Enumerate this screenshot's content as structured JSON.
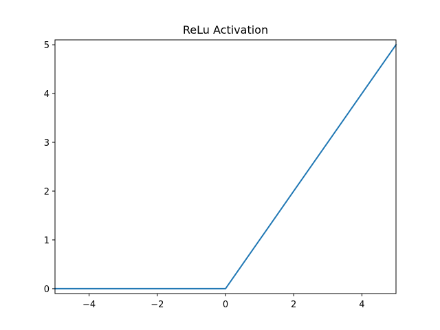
{
  "chart_data": {
    "type": "line",
    "title": "ReLu Activation",
    "xlabel": "",
    "ylabel": "",
    "xlim": [
      -5,
      5
    ],
    "ylim": [
      -0.1,
      5.1
    ],
    "x_ticks": [
      -4,
      -2,
      0,
      2,
      4
    ],
    "x_tick_labels": [
      "−4",
      "−2",
      "0",
      "2",
      "4"
    ],
    "y_ticks": [
      0,
      1,
      2,
      3,
      4,
      5
    ],
    "y_tick_labels": [
      "0",
      "1",
      "2",
      "3",
      "4",
      "5"
    ],
    "grid": false,
    "legend": "none",
    "series": [
      {
        "color": "#1f77b4",
        "x": [
          -5,
          -4,
          -3,
          -2,
          -1,
          0,
          1,
          2,
          3,
          4,
          5
        ],
        "y": [
          0,
          0,
          0,
          0,
          0,
          0,
          1,
          2,
          3,
          4,
          5
        ]
      }
    ]
  }
}
